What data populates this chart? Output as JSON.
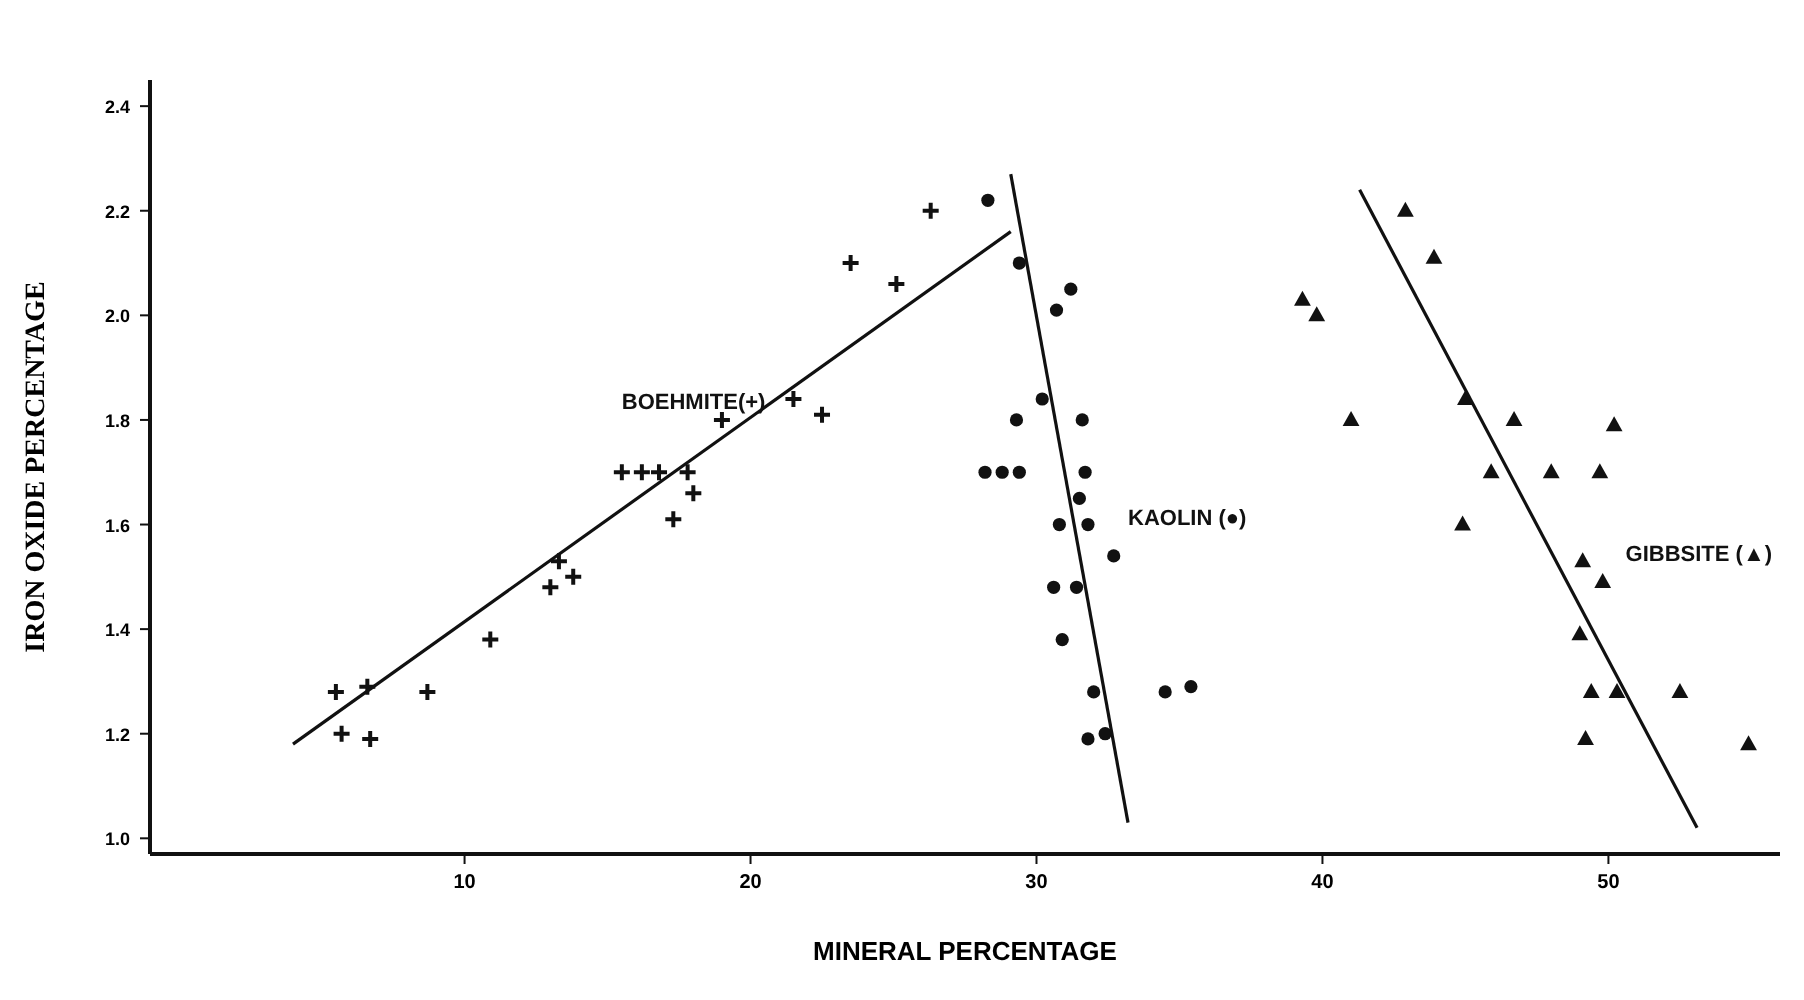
{
  "chart_data": {
    "type": "scatter",
    "xlabel": "MINERAL PERCENTAGE",
    "ylabel": "IRON OXIDE PERCENTAGE",
    "xlim": [
      -1,
      56
    ],
    "ylim": [
      0.97,
      2.45
    ],
    "xticks": [
      10,
      20,
      30,
      40,
      50
    ],
    "yticks": [
      {
        "value": 1,
        "label": "1.0"
      },
      1.2,
      1.4,
      1.6,
      1.8,
      {
        "value": 2,
        "label": "2.0"
      },
      2.2,
      2.4
    ],
    "series": [
      {
        "name": "BOEHMITE(+)",
        "color": "#111111",
        "marker": "cross",
        "x": [
          5.5,
          5.7,
          6.6,
          6.7,
          8.7,
          10.9,
          13.0,
          13.3,
          13.8,
          15.5,
          16.2,
          16.8,
          17.8,
          17.3,
          18.0,
          19.0,
          21.5,
          22.5,
          23.5,
          25.1,
          26.3
        ],
        "values": [
          1.28,
          1.2,
          1.29,
          1.19,
          1.28,
          1.38,
          1.48,
          1.53,
          1.5,
          1.7,
          1.7,
          1.7,
          1.7,
          1.61,
          1.66,
          1.8,
          1.84,
          1.81,
          2.1,
          2.06,
          2.2
        ]
      },
      {
        "name": "KAOLIN (●)",
        "color": "#111111",
        "marker": "circle",
        "x": [
          28.3,
          29.4,
          30.7,
          31.2,
          30.2,
          29.3,
          31.6,
          28.2,
          28.8,
          29.4,
          31.7,
          31.5,
          30.8,
          31.8,
          32.7,
          30.6,
          31.4,
          30.9,
          32.0,
          34.5,
          35.4,
          31.8,
          32.4
        ],
        "values": [
          2.22,
          2.1,
          2.01,
          2.05,
          1.84,
          1.8,
          1.8,
          1.7,
          1.7,
          1.7,
          1.7,
          1.65,
          1.6,
          1.6,
          1.54,
          1.48,
          1.48,
          1.38,
          1.28,
          1.28,
          1.29,
          1.19,
          1.2
        ]
      },
      {
        "name": "GIBBSITE (▲)",
        "color": "#111111",
        "marker": "triangle",
        "x": [
          42.9,
          43.9,
          39.3,
          39.8,
          41.0,
          45.0,
          46.7,
          50.2,
          45.9,
          48.0,
          49.7,
          44.9,
          49.1,
          49.8,
          49.0,
          49.4,
          50.3,
          52.5,
          49.2,
          54.9
        ],
        "values": [
          2.2,
          2.11,
          2.03,
          2.0,
          1.8,
          1.84,
          1.8,
          1.79,
          1.7,
          1.7,
          1.7,
          1.6,
          1.53,
          1.49,
          1.39,
          1.28,
          1.28,
          1.28,
          1.19,
          1.18
        ]
      },
      {
        "type": "line",
        "color": "#111111",
        "marker": "none",
        "line_style": "solid",
        "x": [
          4.0,
          29.1
        ],
        "values": [
          1.18,
          2.16
        ]
      },
      {
        "type": "line",
        "color": "#111111",
        "marker": "none",
        "line_style": "solid",
        "x": [
          29.1,
          33.2
        ],
        "values": [
          2.27,
          1.03
        ]
      },
      {
        "type": "line",
        "color": "#111111",
        "marker": "none",
        "line_style": "solid",
        "x": [
          41.3,
          53.1
        ],
        "values": [
          2.24,
          1.02
        ]
      }
    ]
  }
}
